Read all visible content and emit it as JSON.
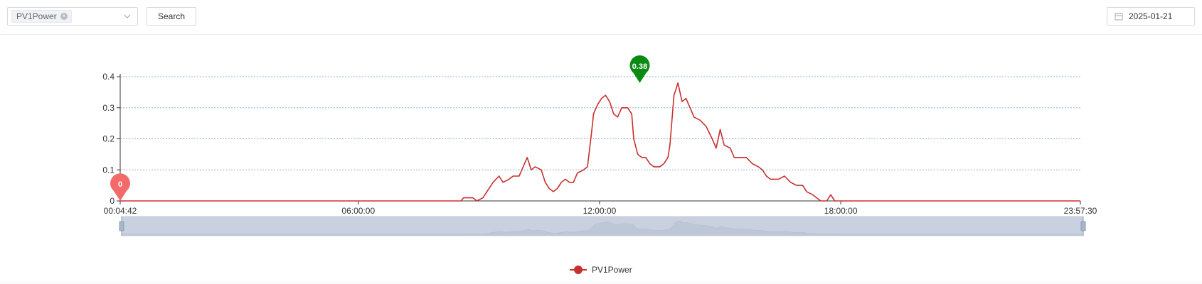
{
  "toolbar": {
    "selected_tag": "PV1Power",
    "tag_close_icon": "close-icon",
    "dropdown_icon": "chevron-down-icon",
    "search_label": "Search",
    "date_icon": "calendar-icon",
    "date_value": "2025-01-21"
  },
  "chart_data": {
    "type": "line",
    "title": "",
    "xlabel": "",
    "ylabel": "",
    "x_tick_labels": [
      "00:04:42",
      "06:00:00",
      "12:00:00",
      "18:00:00",
      "23:57:30"
    ],
    "x_ticks_hours": [
      0.0783,
      6,
      12,
      18,
      23.9583
    ],
    "xlim_hours": [
      0.0783,
      23.9583
    ],
    "ylim": [
      0,
      0.4
    ],
    "y_ticks": [
      0,
      0.1,
      0.2,
      0.3,
      0.4
    ],
    "y_tick_labels": [
      "0",
      "0.1",
      "0.2",
      "0.3",
      "0.4"
    ],
    "grid": true,
    "legend": {
      "position": "bottom-center",
      "entries": [
        "PV1Power"
      ]
    },
    "markers": [
      {
        "label": "0",
        "type": "min",
        "x_hours": 0.0783,
        "y": 0,
        "color": "#f26b6b"
      },
      {
        "label": "0.38",
        "type": "max",
        "x_hours": 13.0,
        "y": 0.38,
        "color": "#0a8a12"
      }
    ],
    "series": [
      {
        "name": "PV1Power",
        "color": "#c8302f",
        "points": [
          [
            0.0783,
            0
          ],
          [
            8.55,
            0
          ],
          [
            8.62,
            0.01
          ],
          [
            8.85,
            0.01
          ],
          [
            8.95,
            0
          ],
          [
            9.1,
            0.01
          ],
          [
            9.2,
            0.03
          ],
          [
            9.35,
            0.06
          ],
          [
            9.5,
            0.08
          ],
          [
            9.6,
            0.06
          ],
          [
            9.75,
            0.07
          ],
          [
            9.85,
            0.08
          ],
          [
            10.0,
            0.08
          ],
          [
            10.1,
            0.11
          ],
          [
            10.2,
            0.14
          ],
          [
            10.3,
            0.1
          ],
          [
            10.4,
            0.11
          ],
          [
            10.55,
            0.1
          ],
          [
            10.65,
            0.06
          ],
          [
            10.75,
            0.04
          ],
          [
            10.85,
            0.03
          ],
          [
            10.95,
            0.04
          ],
          [
            11.05,
            0.06
          ],
          [
            11.15,
            0.07
          ],
          [
            11.25,
            0.06
          ],
          [
            11.35,
            0.06
          ],
          [
            11.45,
            0.09
          ],
          [
            11.6,
            0.1
          ],
          [
            11.7,
            0.11
          ],
          [
            11.8,
            0.22
          ],
          [
            11.85,
            0.28
          ],
          [
            11.95,
            0.31
          ],
          [
            12.05,
            0.33
          ],
          [
            12.15,
            0.34
          ],
          [
            12.25,
            0.32
          ],
          [
            12.35,
            0.28
          ],
          [
            12.45,
            0.27
          ],
          [
            12.55,
            0.3
          ],
          [
            12.7,
            0.3
          ],
          [
            12.8,
            0.28
          ],
          [
            12.85,
            0.2
          ],
          [
            12.95,
            0.15
          ],
          [
            13.05,
            0.14
          ],
          [
            13.15,
            0.14
          ],
          [
            13.25,
            0.12
          ],
          [
            13.35,
            0.11
          ],
          [
            13.5,
            0.11
          ],
          [
            13.6,
            0.12
          ],
          [
            13.7,
            0.14
          ],
          [
            13.75,
            0.18
          ],
          [
            13.85,
            0.34
          ],
          [
            13.95,
            0.38
          ],
          [
            14.05,
            0.32
          ],
          [
            14.15,
            0.33
          ],
          [
            14.25,
            0.3
          ],
          [
            14.35,
            0.27
          ],
          [
            14.5,
            0.26
          ],
          [
            14.65,
            0.24
          ],
          [
            14.8,
            0.2
          ],
          [
            14.9,
            0.17
          ],
          [
            15.0,
            0.23
          ],
          [
            15.1,
            0.18
          ],
          [
            15.25,
            0.17
          ],
          [
            15.35,
            0.14
          ],
          [
            15.5,
            0.14
          ],
          [
            15.65,
            0.14
          ],
          [
            15.8,
            0.12
          ],
          [
            15.95,
            0.11
          ],
          [
            16.05,
            0.1
          ],
          [
            16.15,
            0.08
          ],
          [
            16.25,
            0.07
          ],
          [
            16.45,
            0.07
          ],
          [
            16.6,
            0.08
          ],
          [
            16.75,
            0.06
          ],
          [
            16.9,
            0.05
          ],
          [
            17.05,
            0.05
          ],
          [
            17.15,
            0.03
          ],
          [
            17.3,
            0.02
          ],
          [
            17.4,
            0.01
          ],
          [
            17.5,
            0
          ],
          [
            17.65,
            0
          ],
          [
            17.75,
            0.02
          ],
          [
            17.85,
            0
          ],
          [
            23.9583,
            0
          ]
        ]
      }
    ]
  }
}
